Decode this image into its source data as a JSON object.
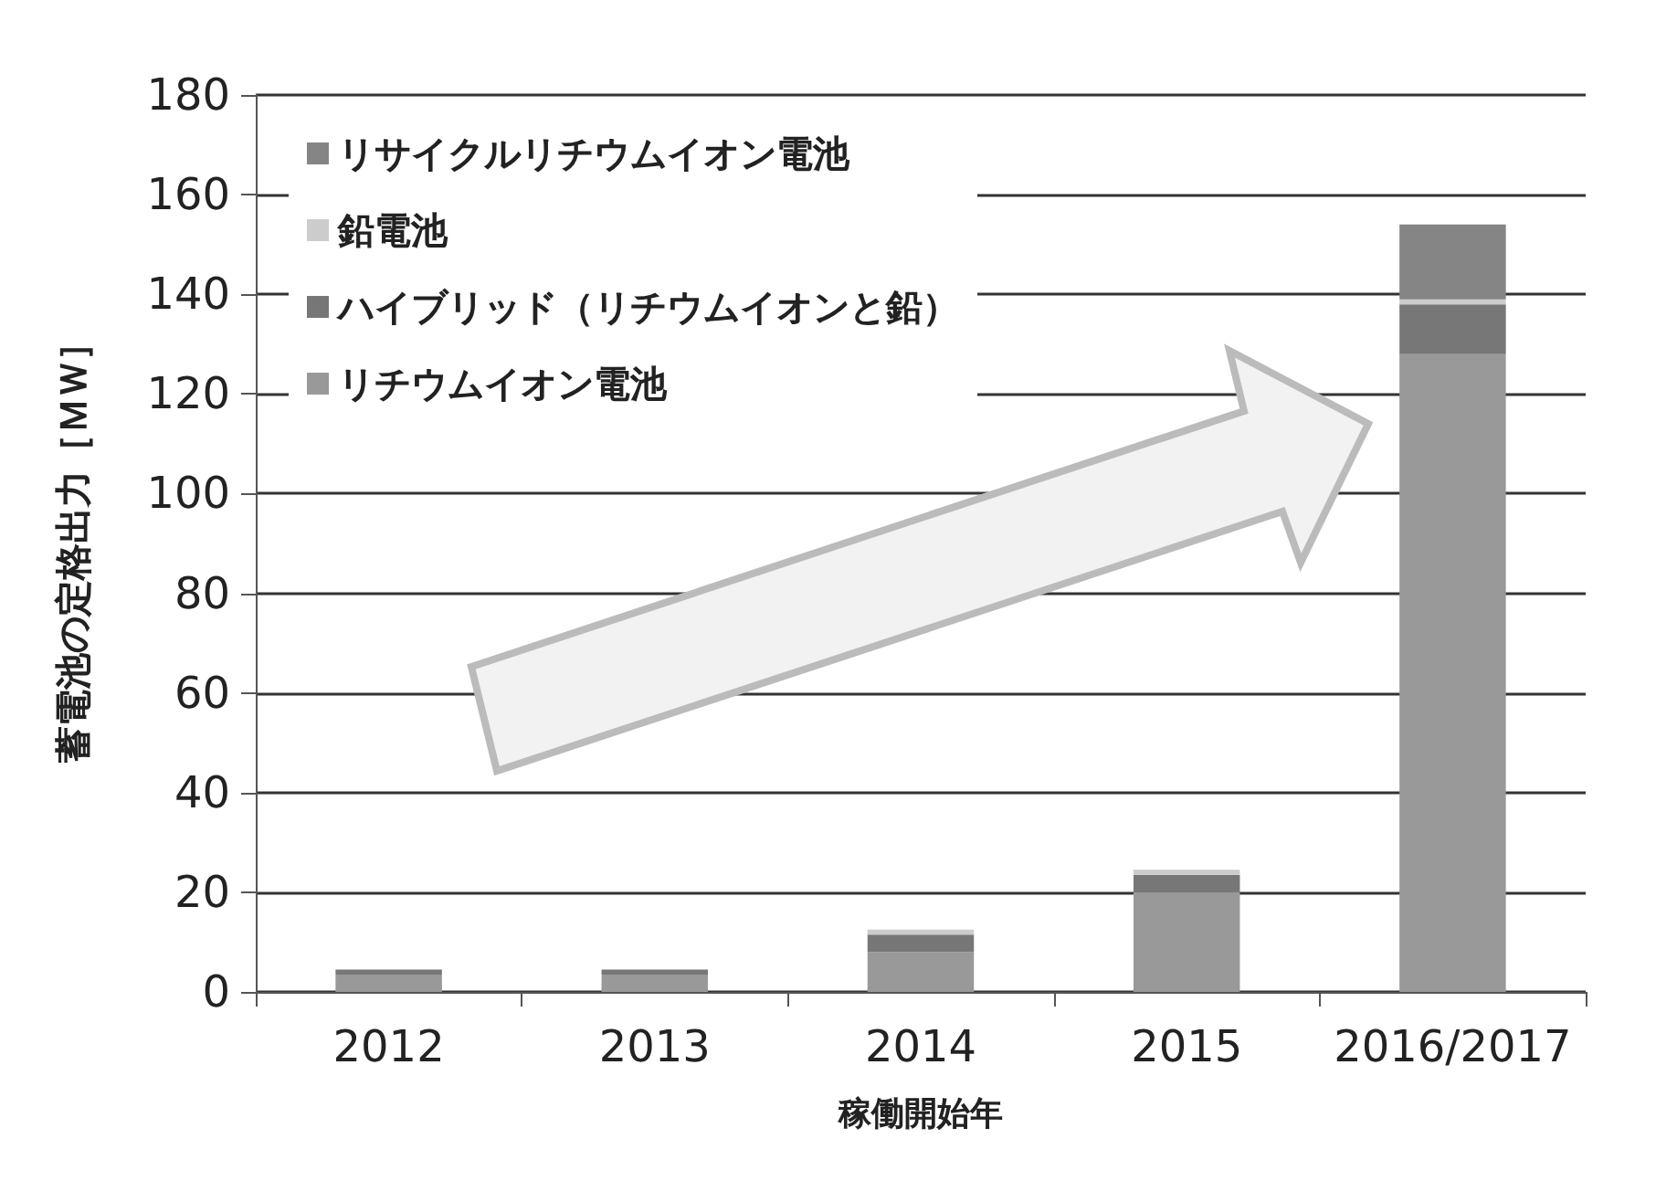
{
  "chart_data": {
    "type": "bar",
    "stacked": true,
    "xlabel": "稼働開始年",
    "ylabel": "蓄電池の定格出力［ＭＷ］",
    "categories": [
      "2012",
      "2013",
      "2014",
      "2015",
      "2016/2017"
    ],
    "series": [
      {
        "name": "リチウムイオン電池",
        "color": "#999999",
        "values": [
          3.5,
          3.5,
          8,
          20,
          128
        ]
      },
      {
        "name": "ハイブリッド（リチウムイオンと鉛）",
        "color": "#777777",
        "values": [
          1,
          1,
          3.5,
          3.5,
          10
        ]
      },
      {
        "name": "鉛電池",
        "color": "#cccccc",
        "values": [
          0,
          0,
          1,
          1,
          1
        ]
      },
      {
        "name": "リサイクルリチウムイオン電池",
        "color": "#858585",
        "values": [
          0,
          0,
          0,
          0,
          15
        ]
      }
    ],
    "ylim": [
      0,
      180
    ],
    "yticks": [
      0,
      20,
      40,
      60,
      80,
      100,
      120,
      140,
      160,
      180
    ],
    "grid": "y",
    "legend": "top left"
  }
}
